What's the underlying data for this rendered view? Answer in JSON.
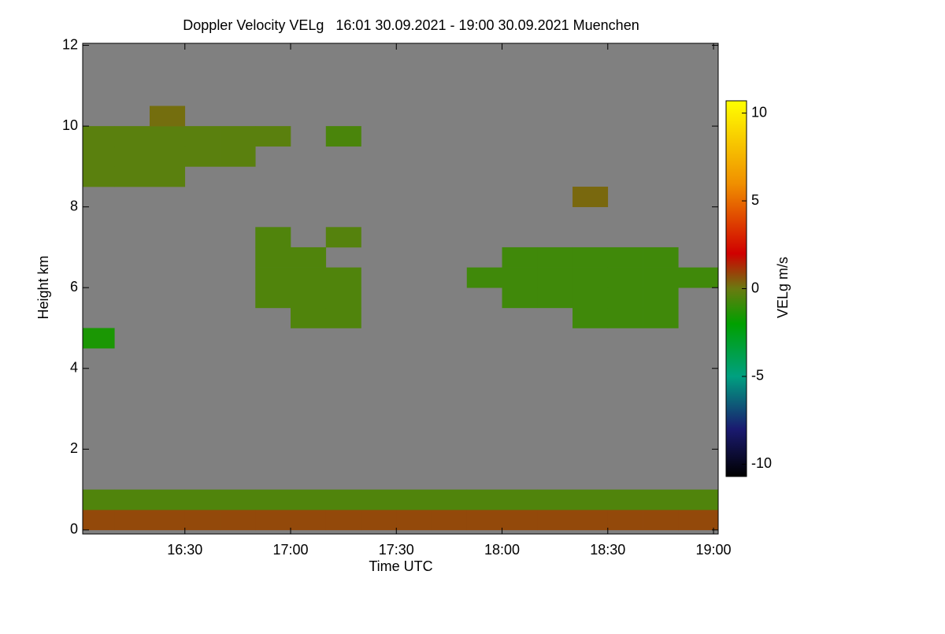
{
  "chart_data": {
    "type": "heatmap",
    "title": "Doppler Velocity VELg   16:01 30.09.2021 - 19:00 30.09.2021 Muenchen",
    "x_label": "Time UTC",
    "y_label": "Height km",
    "colorbar_label": "VELg m/s",
    "background": "#808080",
    "xlim": [
      16.0167,
      19.0222
    ],
    "xticks": [
      {
        "value": 16.5,
        "label": "16:30"
      },
      {
        "value": 17.0,
        "label": "17:00"
      },
      {
        "value": 17.5,
        "label": "17:30"
      },
      {
        "value": 18.0,
        "label": "18:00"
      },
      {
        "value": 18.5,
        "label": "18:30"
      },
      {
        "value": 19.0,
        "label": "19:00"
      }
    ],
    "ylim": [
      -0.1,
      12.05
    ],
    "yticks": [
      0,
      2,
      4,
      6,
      8,
      10,
      12
    ],
    "zlim": [
      -10.7,
      10.7
    ],
    "zticks": [
      10,
      5,
      0,
      -5,
      -10
    ],
    "colorscale": [
      [
        -10.7,
        "#000000"
      ],
      [
        -8,
        "#1a1a70"
      ],
      [
        -5,
        "#00a080"
      ],
      [
        -2,
        "#00a000"
      ],
      [
        0,
        "#6a7a10"
      ],
      [
        2,
        "#d00000"
      ],
      [
        6,
        "#f09000"
      ],
      [
        10.7,
        "#ffff00"
      ]
    ],
    "x_bins": [
      16.0167,
      16.1667,
      16.3333,
      16.5,
      16.6667,
      16.8333,
      17.0,
      17.1667,
      17.3333,
      17.5,
      17.6667,
      17.8333,
      18.0,
      18.1667,
      18.3333,
      18.5,
      18.6667,
      18.8333,
      19.0222
    ],
    "y_bins": [
      0,
      0.5,
      1,
      1.5,
      2,
      2.5,
      3,
      3.5,
      4,
      4.5,
      5,
      5.5,
      6,
      6.5,
      7,
      7.5,
      8,
      8.5,
      9,
      9.5,
      10,
      10.5,
      11,
      11.5,
      12
    ],
    "z": [
      [
        0.8,
        0.8,
        0.8,
        0.8,
        0.8,
        0.8,
        0.8,
        0.8,
        0.8,
        0.8,
        0.8,
        0.8,
        0.8,
        0.8,
        0.8,
        0.8,
        0.8,
        0.8
      ],
      [
        -0.5,
        -0.5,
        -0.5,
        -0.5,
        -0.5,
        -0.5,
        -0.5,
        -0.5,
        -0.5,
        -0.5,
        -0.5,
        -0.5,
        -0.5,
        -0.5,
        -0.5,
        -0.5,
        -0.5,
        -0.5
      ],
      [
        null,
        null,
        null,
        null,
        null,
        null,
        null,
        null,
        null,
        null,
        null,
        null,
        null,
        null,
        null,
        null,
        null,
        null
      ],
      [
        null,
        null,
        null,
        null,
        null,
        null,
        null,
        null,
        null,
        null,
        null,
        null,
        null,
        null,
        null,
        null,
        null,
        null
      ],
      [
        null,
        null,
        null,
        null,
        null,
        null,
        null,
        null,
        null,
        null,
        null,
        null,
        null,
        null,
        null,
        null,
        null,
        null
      ],
      [
        null,
        null,
        null,
        null,
        null,
        null,
        null,
        null,
        null,
        null,
        null,
        null,
        null,
        null,
        null,
        null,
        null,
        null
      ],
      [
        null,
        null,
        null,
        null,
        null,
        null,
        null,
        null,
        null,
        null,
        null,
        null,
        null,
        null,
        null,
        null,
        null,
        null
      ],
      [
        null,
        null,
        null,
        null,
        null,
        null,
        null,
        null,
        null,
        null,
        null,
        null,
        null,
        null,
        null,
        null,
        null,
        null
      ],
      [
        null,
        null,
        null,
        null,
        null,
        null,
        null,
        null,
        null,
        null,
        null,
        null,
        null,
        null,
        null,
        null,
        null,
        null
      ],
      [
        -1.5,
        null,
        null,
        null,
        null,
        null,
        null,
        null,
        null,
        null,
        null,
        null,
        null,
        null,
        null,
        null,
        null,
        null
      ],
      [
        null,
        null,
        null,
        null,
        null,
        null,
        -0.5,
        -0.5,
        null,
        null,
        null,
        null,
        null,
        null,
        -0.8,
        -0.8,
        -0.8,
        null
      ],
      [
        null,
        null,
        null,
        null,
        null,
        -0.5,
        -0.5,
        -0.5,
        null,
        null,
        null,
        null,
        -0.8,
        -0.8,
        -0.8,
        -0.8,
        -0.8,
        null
      ],
      [
        null,
        null,
        null,
        null,
        null,
        -0.5,
        -0.5,
        -0.5,
        null,
        null,
        null,
        -0.8,
        -0.8,
        -0.8,
        -0.8,
        -0.8,
        -0.8,
        -0.8
      ],
      [
        null,
        null,
        null,
        null,
        null,
        -0.5,
        -0.5,
        null,
        null,
        null,
        null,
        null,
        -0.8,
        -0.8,
        -0.8,
        -0.8,
        -0.8,
        null
      ],
      [
        null,
        null,
        null,
        null,
        null,
        -0.5,
        null,
        -0.4,
        null,
        null,
        null,
        null,
        null,
        null,
        null,
        null,
        null,
        null
      ],
      [
        null,
        null,
        null,
        null,
        null,
        null,
        null,
        null,
        null,
        null,
        null,
        null,
        null,
        null,
        null,
        null,
        null,
        null
      ],
      [
        null,
        null,
        null,
        null,
        null,
        null,
        null,
        null,
        null,
        null,
        null,
        null,
        null,
        null,
        0.3,
        null,
        null,
        null
      ],
      [
        -0.3,
        -0.3,
        -0.3,
        null,
        null,
        null,
        null,
        null,
        null,
        null,
        null,
        null,
        null,
        null,
        null,
        null,
        null,
        null
      ],
      [
        -0.3,
        -0.3,
        -0.3,
        -0.3,
        -0.3,
        null,
        null,
        null,
        null,
        null,
        null,
        null,
        null,
        null,
        null,
        null,
        null,
        null
      ],
      [
        -0.3,
        -0.3,
        -0.3,
        -0.3,
        -0.3,
        -0.3,
        null,
        -0.6,
        null,
        null,
        null,
        null,
        null,
        null,
        null,
        null,
        null,
        null
      ],
      [
        null,
        null,
        0.2,
        null,
        null,
        null,
        null,
        null,
        null,
        null,
        null,
        null,
        null,
        null,
        null,
        null,
        null,
        null
      ],
      [
        null,
        null,
        null,
        null,
        null,
        null,
        null,
        null,
        null,
        null,
        null,
        null,
        null,
        null,
        null,
        null,
        null,
        null
      ],
      [
        null,
        null,
        null,
        null,
        null,
        null,
        null,
        null,
        null,
        null,
        null,
        null,
        null,
        null,
        null,
        null,
        null,
        null
      ],
      [
        null,
        null,
        null,
        null,
        null,
        null,
        null,
        null,
        null,
        null,
        null,
        null,
        null,
        null,
        null,
        null,
        null,
        null
      ]
    ]
  }
}
